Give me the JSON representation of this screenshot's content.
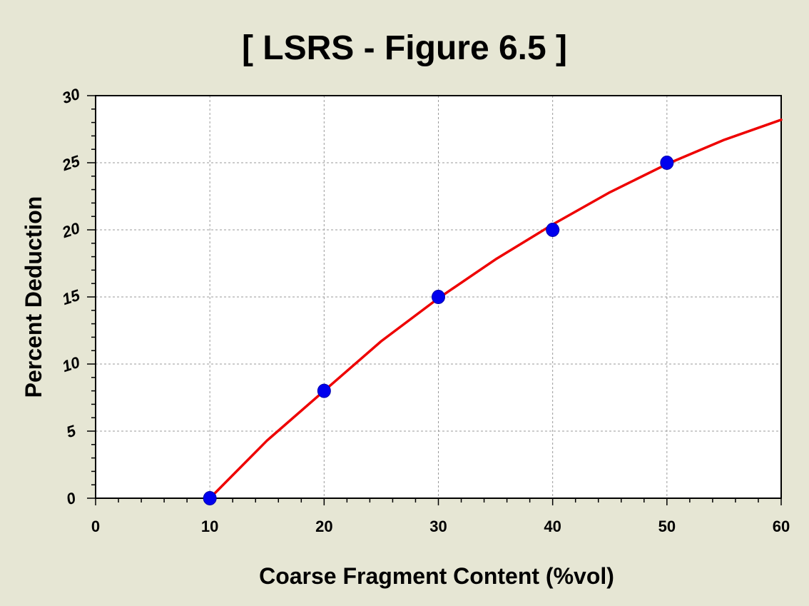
{
  "page": {
    "background": "#e6e6d4"
  },
  "chart_data": {
    "type": "scatter",
    "title": "[ LSRS - Figure 6.5 ]",
    "xlabel": "Coarse Fragment Content (%vol)",
    "ylabel": "Percent Deduction",
    "xlim": [
      0,
      60
    ],
    "ylim": [
      0,
      30
    ],
    "xticks": [
      0,
      10,
      20,
      30,
      40,
      50,
      60
    ],
    "yticks": [
      0,
      5,
      10,
      15,
      20,
      25,
      30
    ],
    "xtick_labels": [
      "0",
      "10",
      "20",
      "30",
      "40",
      "50",
      "60"
    ],
    "ytick_labels": [
      "0",
      "5",
      "10",
      "15",
      "20",
      "25",
      "30"
    ],
    "grid": true,
    "series": [
      {
        "kind": "points",
        "color": "#0000ee",
        "x": [
          10,
          20,
          30,
          40,
          50
        ],
        "y": [
          0,
          8,
          15,
          20,
          25
        ]
      },
      {
        "kind": "fitted-curve",
        "color": "#ee0000",
        "x": [
          10,
          15,
          20,
          25,
          30,
          35,
          40,
          45,
          50,
          55,
          60
        ],
        "y": [
          0,
          4.3,
          8.0,
          11.7,
          14.9,
          17.8,
          20.4,
          22.8,
          24.9,
          26.7,
          28.2
        ]
      }
    ]
  }
}
